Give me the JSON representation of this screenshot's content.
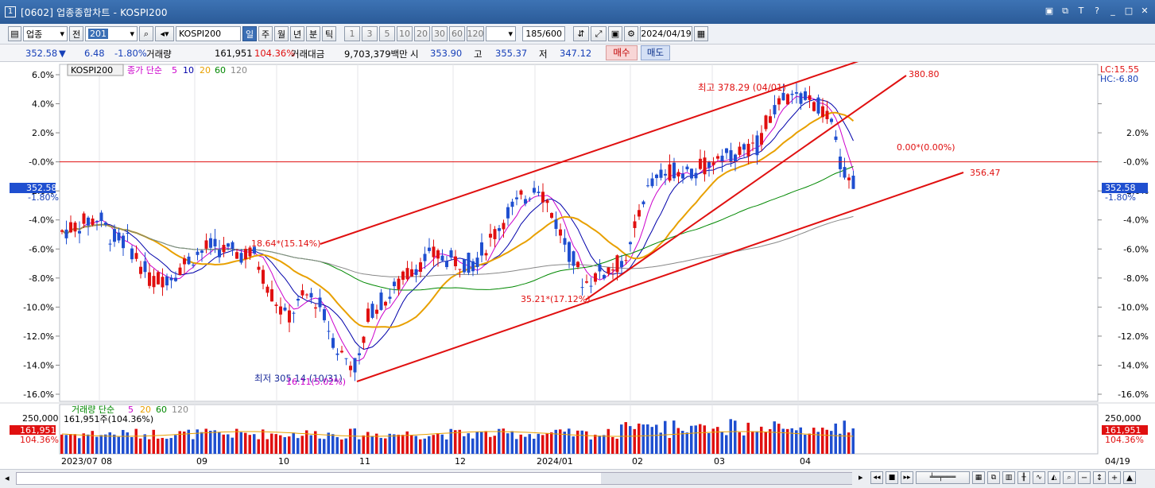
{
  "window": {
    "app_number": "1",
    "title": "[0602] 업종종합차트 - KOSPI200",
    "buttons": [
      "▣",
      "⧉",
      "T",
      "?",
      "_",
      "□",
      "✕"
    ]
  },
  "toolbar": {
    "market_type": "업종",
    "prev_label": "전",
    "code": "201",
    "index_name": "KOSPI200",
    "periods": [
      "일",
      "주",
      "월",
      "년",
      "분",
      "틱"
    ],
    "active_period": "일",
    "intervals": [
      "1",
      "3",
      "5",
      "10",
      "20",
      "30",
      "60",
      "120"
    ],
    "count": "185/600",
    "date": "2024/04/19"
  },
  "quote": {
    "price": "352.58",
    "direction": "▼",
    "change": "6.48",
    "change_pct": "-1.80%",
    "volume_label": "거래량",
    "volume": "161,951",
    "volume_ratio": "104.36%",
    "value_label": "거래대금",
    "value": "9,703,379백만",
    "open_label": "시",
    "open": "353.90",
    "high_label": "고",
    "high": "355.37",
    "low_label": "저",
    "low": "347.12",
    "buy": "매수",
    "sell": "매도"
  },
  "legend": {
    "symbol": "KOSPI200",
    "title": "종가 단순",
    "ma": [
      "5",
      "10",
      "20",
      "60",
      "120"
    ],
    "ma_colors": [
      "#cc00cc",
      "#0000aa",
      "#e8a000",
      "#008800",
      "#888888"
    ]
  },
  "price_axis": {
    "ticks": [
      "6.0%",
      "4.0%",
      "2.0%",
      "-0.0%",
      "-2.0%",
      "-4.0%",
      "-6.0%",
      "-8.0%",
      "-10.0%",
      "-12.0%",
      "-14.0%",
      "-16.0%"
    ],
    "right_ticks": [
      "6.0%",
      "4.0%",
      "2.0%",
      "-0.0%",
      "-2.0%",
      "-4.0%",
      "-6.0%",
      "-8.0%",
      "-10.0%",
      "-12.0%",
      "-14.0%",
      "-16.0%"
    ],
    "lc": "LC:15.55",
    "hc": "HC:-6.80",
    "current_value": "352.58",
    "current_pct": "-1.80%"
  },
  "annotations": {
    "high": "최고 378.29 (04/01)",
    "low": "최저 305.14 (10/31)",
    "low_pct": "16.11(5.02%)",
    "mid_label": "18.64*(15.14%)",
    "bottom_label": "35.21*(17.12%)",
    "zero_label": "0.00*(0.00%)",
    "line_top": "380.80",
    "line_mid": "356.47"
  },
  "volume_panel": {
    "title": "거래량 단순",
    "ma": [
      "5",
      "20",
      "60",
      "120"
    ],
    "ma_colors": [
      "#cc00cc",
      "#e8a000",
      "#008800",
      "#888888"
    ],
    "value_text": "161,951주(104.36%)",
    "tick": "250,000",
    "current": "161,951",
    "ratio": "104.36%"
  },
  "x_axis": {
    "labels": [
      "2023/07",
      "08",
      "09",
      "10",
      "11",
      "12",
      "2024/01",
      "02",
      "03",
      "04"
    ],
    "end_date": "04/19"
  },
  "colors": {
    "up": "#e01010",
    "down": "#1f4fd0",
    "trend": "#e01010",
    "title_bar": "#3366a8"
  }
}
